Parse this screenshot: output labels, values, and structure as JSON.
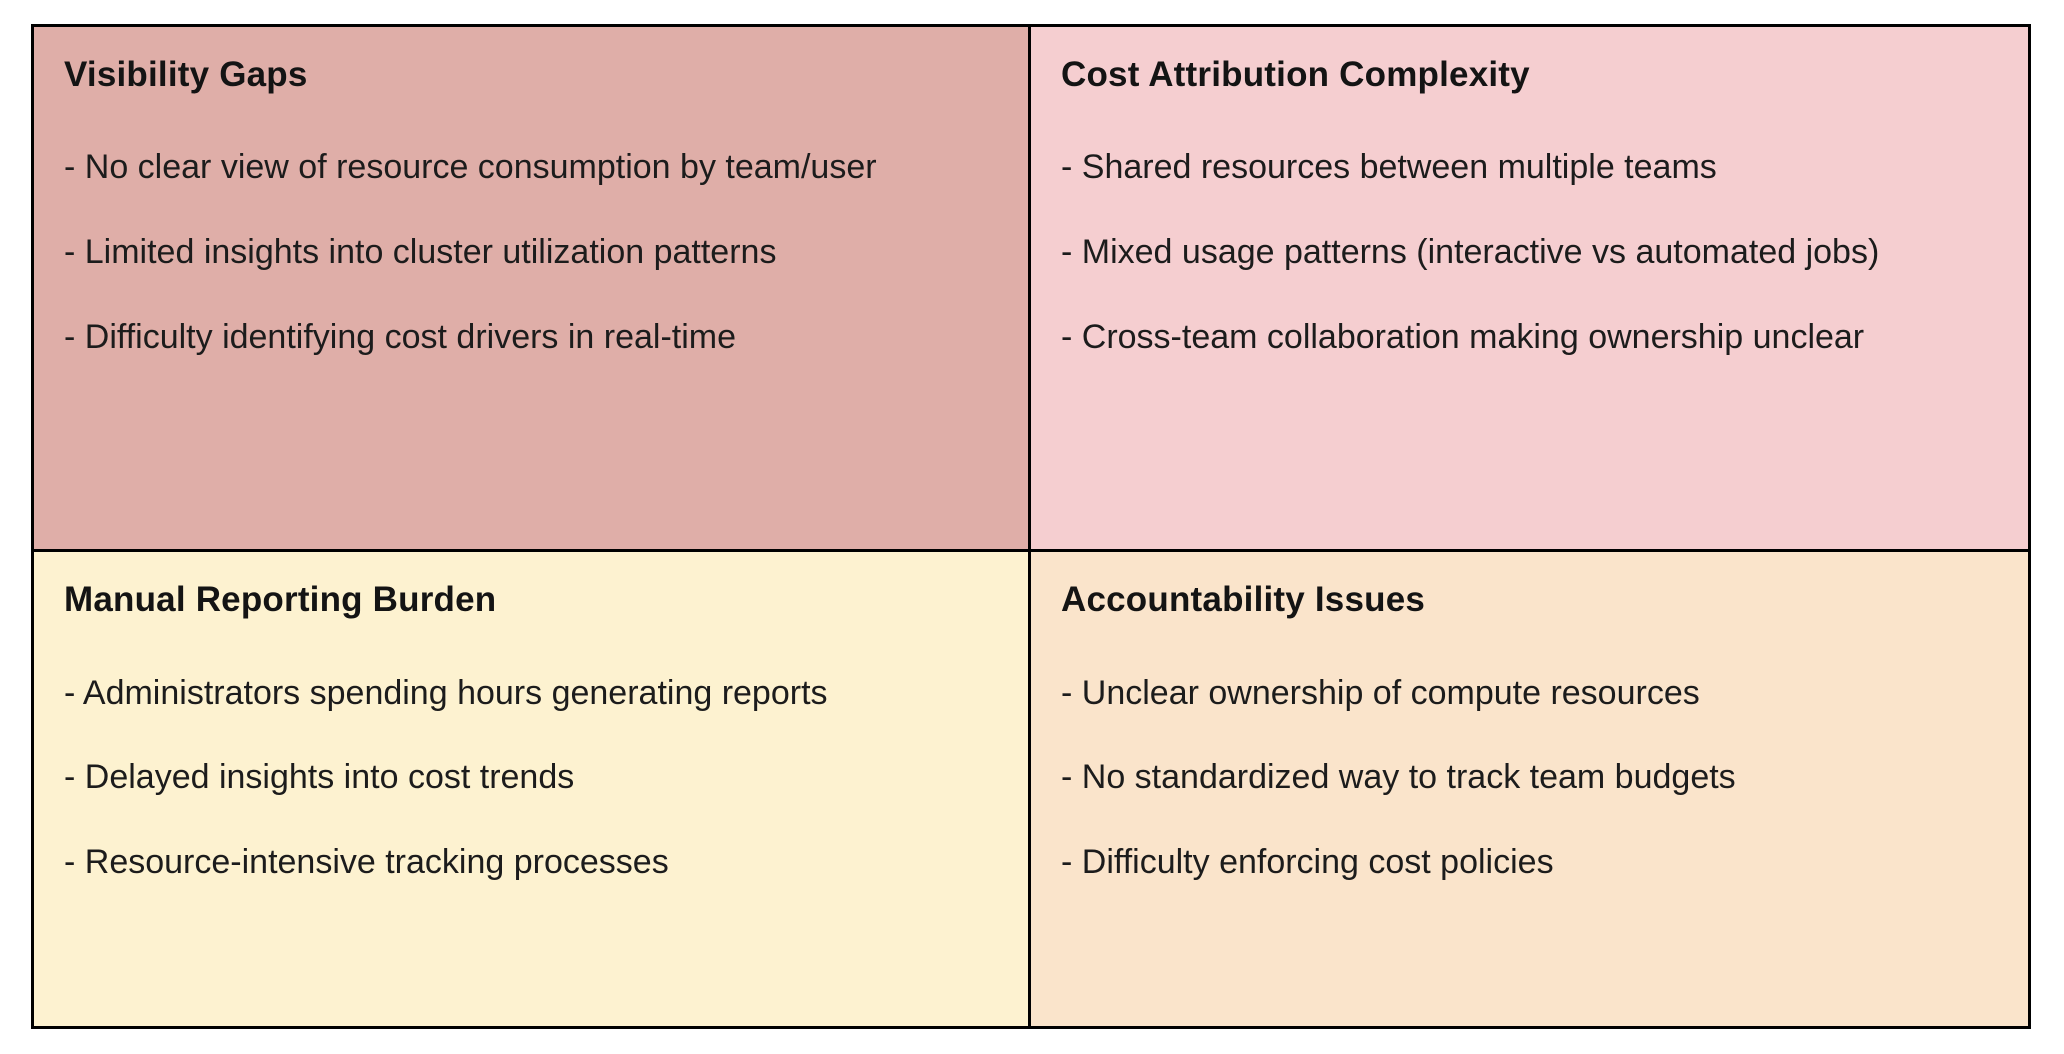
{
  "colors": {
    "border": "#000000",
    "quadrant_backgrounds": {
      "visibility_gaps": "#dfaea8",
      "cost_attribution_complexity": "#f5ced0",
      "manual_reporting_burden": "#fdf2d0",
      "accountability_issues": "#fae4cb"
    }
  },
  "quadrants": [
    {
      "title": "Visibility Gaps",
      "bg": "#dfaea8",
      "bullets": [
        "- No clear view of resource consumption by team/user",
        "- Limited insights into cluster utilization patterns",
        "- Difficulty identifying cost drivers in real-time"
      ]
    },
    {
      "title": "Cost Attribution Complexity",
      "bg": "#f5ced0",
      "bullets": [
        "- Shared resources between multiple teams",
        "- Mixed usage patterns (interactive vs automated jobs)",
        "- Cross-team collaboration making ownership unclear"
      ]
    },
    {
      "title": "Manual Reporting Burden",
      "bg": "#fdf2d0",
      "bullets": [
        "- Administrators spending hours generating reports",
        "- Delayed insights into cost trends",
        "- Resource-intensive tracking processes"
      ]
    },
    {
      "title": "Accountability Issues",
      "bg": "#fae4cb",
      "bullets": [
        "- Unclear ownership of compute resources",
        "- No standardized way to track team budgets",
        "- Difficulty enforcing cost policies"
      ]
    }
  ]
}
